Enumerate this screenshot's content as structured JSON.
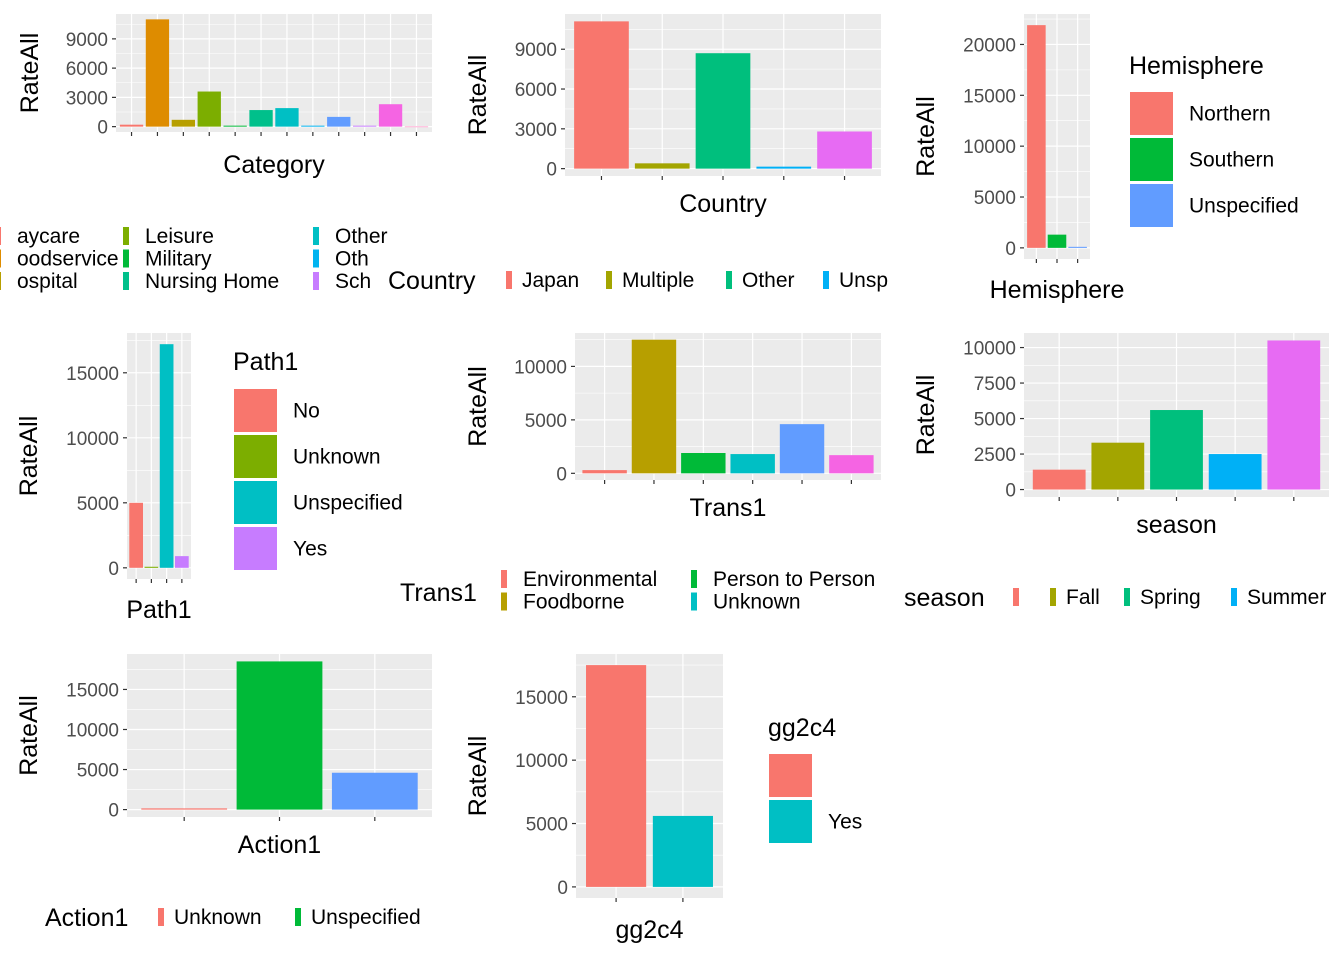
{
  "chart_data": [
    {
      "type": "bar",
      "title": "",
      "xlabel": "Category",
      "ylabel": "RateAll",
      "categories": [
        "",
        "",
        "",
        "",
        "",
        "",
        "",
        "",
        "",
        "",
        "",
        ""
      ],
      "values": [
        200,
        11000,
        700,
        3600,
        100,
        1700,
        1900,
        100,
        1000,
        100,
        2300,
        0
      ],
      "colors": [
        "#F8766D",
        "#DE8C00",
        "#B79F00",
        "#7CAE00",
        "#00BA38",
        "#00C08B",
        "#00BFC4",
        "#00B4F0",
        "#619CFF",
        "#C77CFF",
        "#F564E3",
        "#FF64B0"
      ],
      "yticks": [
        0,
        3000,
        6000,
        9000
      ],
      "ylim": [
        0,
        11000
      ],
      "legend": {
        "position": "bottom",
        "title": "",
        "entries": [
          "aycare",
          "oodservice",
          "ospital",
          "Leisure",
          "Military",
          "Nursing Home",
          "Other",
          "Oth",
          "Sch"
        ],
        "colors": [
          "#F8766D",
          "#DE8C00",
          "#B79F00",
          "#7CAE00",
          "#00BA38",
          "#00C08B",
          "#00BFC4",
          "#00B4F0",
          "#C77CFF"
        ]
      },
      "grid": true
    },
    {
      "type": "bar",
      "title": "",
      "xlabel": "Country",
      "ylabel": "RateAll",
      "categories": [
        "",
        "",
        "",
        "",
        ""
      ],
      "values": [
        11100,
        400,
        8700,
        150,
        2800
      ],
      "colors": [
        "#F8766D",
        "#A3A500",
        "#00BF7D",
        "#00B0F6",
        "#E76BF3"
      ],
      "yticks": [
        0,
        3000,
        6000,
        9000
      ],
      "ylim": [
        0,
        11100
      ],
      "legend": {
        "position": "bottom",
        "title": "Country",
        "entries": [
          "Japan",
          "Multiple",
          "Other",
          "Unsp"
        ],
        "colors": [
          "#F8766D",
          "#A3A500",
          "#00BF7D",
          "#00B0F6"
        ]
      },
      "grid": true
    },
    {
      "type": "bar",
      "title": "",
      "xlabel": "Hemisphere",
      "ylabel": "RateAll",
      "categories": [
        "",
        "",
        ""
      ],
      "values": [
        21900,
        1300,
        100
      ],
      "colors": [
        "#F8766D",
        "#00BA38",
        "#619CFF"
      ],
      "yticks": [
        0,
        5000,
        10000,
        15000,
        20000
      ],
      "ylim": [
        0,
        21900
      ],
      "legend": {
        "position": "right",
        "title": "Hemisphere",
        "entries": [
          "Northern",
          "Southern",
          "Unspecified"
        ],
        "colors": [
          "#F8766D",
          "#00BA38",
          "#619CFF"
        ]
      },
      "grid": true
    },
    {
      "type": "bar",
      "title": "",
      "xlabel": "Path1",
      "ylabel": "RateAll",
      "categories": [
        "",
        "",
        "",
        ""
      ],
      "values": [
        5000,
        80,
        17200,
        900
      ],
      "colors": [
        "#F8766D",
        "#7CAE00",
        "#00BFC4",
        "#C77CFF"
      ],
      "yticks": [
        0,
        5000,
        10000,
        15000
      ],
      "ylim": [
        0,
        17200
      ],
      "legend": {
        "position": "right",
        "title": "Path1",
        "entries": [
          "No",
          "Unknown",
          "Unspecified",
          "Yes"
        ],
        "colors": [
          "#F8766D",
          "#7CAE00",
          "#00BFC4",
          "#C77CFF"
        ]
      },
      "grid": true
    },
    {
      "type": "bar",
      "title": "",
      "xlabel": "Trans1",
      "ylabel": "RateAll",
      "categories": [
        "",
        "",
        "",
        "",
        "",
        ""
      ],
      "values": [
        300,
        12500,
        1900,
        1800,
        4600,
        1700
      ],
      "colors": [
        "#F8766D",
        "#B79F00",
        "#00BA38",
        "#00BFC4",
        "#619CFF",
        "#F564E3"
      ],
      "yticks": [
        0,
        5000,
        10000
      ],
      "ylim": [
        0,
        12500
      ],
      "legend": {
        "position": "bottom",
        "title": "Trans1",
        "entries": [
          "Environmental",
          "Foodborne",
          "Person to Person",
          "Unknown"
        ],
        "colors": [
          "#F8766D",
          "#B79F00",
          "#00BA38",
          "#00BFC4"
        ]
      },
      "grid": true
    },
    {
      "type": "bar",
      "title": "",
      "xlabel": "season",
      "ylabel": "RateAll",
      "categories": [
        "",
        "",
        "",
        "",
        ""
      ],
      "values": [
        1400,
        3300,
        5600,
        2500,
        10500
      ],
      "colors": [
        "#F8766D",
        "#A3A500",
        "#00BF7D",
        "#00B0F6",
        "#E76BF3"
      ],
      "yticks": [
        0,
        2500,
        5000,
        7500,
        10000
      ],
      "ylim": [
        0,
        10500
      ],
      "legend": {
        "position": "bottom",
        "title": "season",
        "entries": [
          "",
          "Fall",
          "Spring",
          "Summer"
        ],
        "colors": [
          "#F8766D",
          "#A3A500",
          "#00BF7D",
          "#00B0F6"
        ]
      },
      "grid": true
    },
    {
      "type": "bar",
      "title": "",
      "xlabel": "Action1",
      "ylabel": "RateAll",
      "categories": [
        "",
        "",
        ""
      ],
      "values": [
        150,
        18500,
        4600
      ],
      "colors": [
        "#F8766D",
        "#00BA38",
        "#619CFF"
      ],
      "yticks": [
        0,
        5000,
        10000,
        15000
      ],
      "ylim": [
        0,
        18500
      ],
      "legend": {
        "position": "bottom",
        "title": "Action1",
        "entries": [
          "Unknown",
          "Unspecified"
        ],
        "colors": [
          "#F8766D",
          "#00BA38"
        ]
      },
      "grid": true
    },
    {
      "type": "bar",
      "title": "",
      "xlabel": "gg2c4",
      "ylabel": "RateAll",
      "categories": [
        "",
        ""
      ],
      "values": [
        17500,
        5600
      ],
      "colors": [
        "#F8766D",
        "#00BFC4"
      ],
      "yticks": [
        0,
        5000,
        10000,
        15000
      ],
      "ylim": [
        0,
        17500
      ],
      "legend": {
        "position": "right",
        "title": "gg2c4",
        "entries": [
          "",
          "Yes"
        ],
        "colors": [
          "#F8766D",
          "#00BFC4"
        ]
      },
      "grid": true
    }
  ]
}
